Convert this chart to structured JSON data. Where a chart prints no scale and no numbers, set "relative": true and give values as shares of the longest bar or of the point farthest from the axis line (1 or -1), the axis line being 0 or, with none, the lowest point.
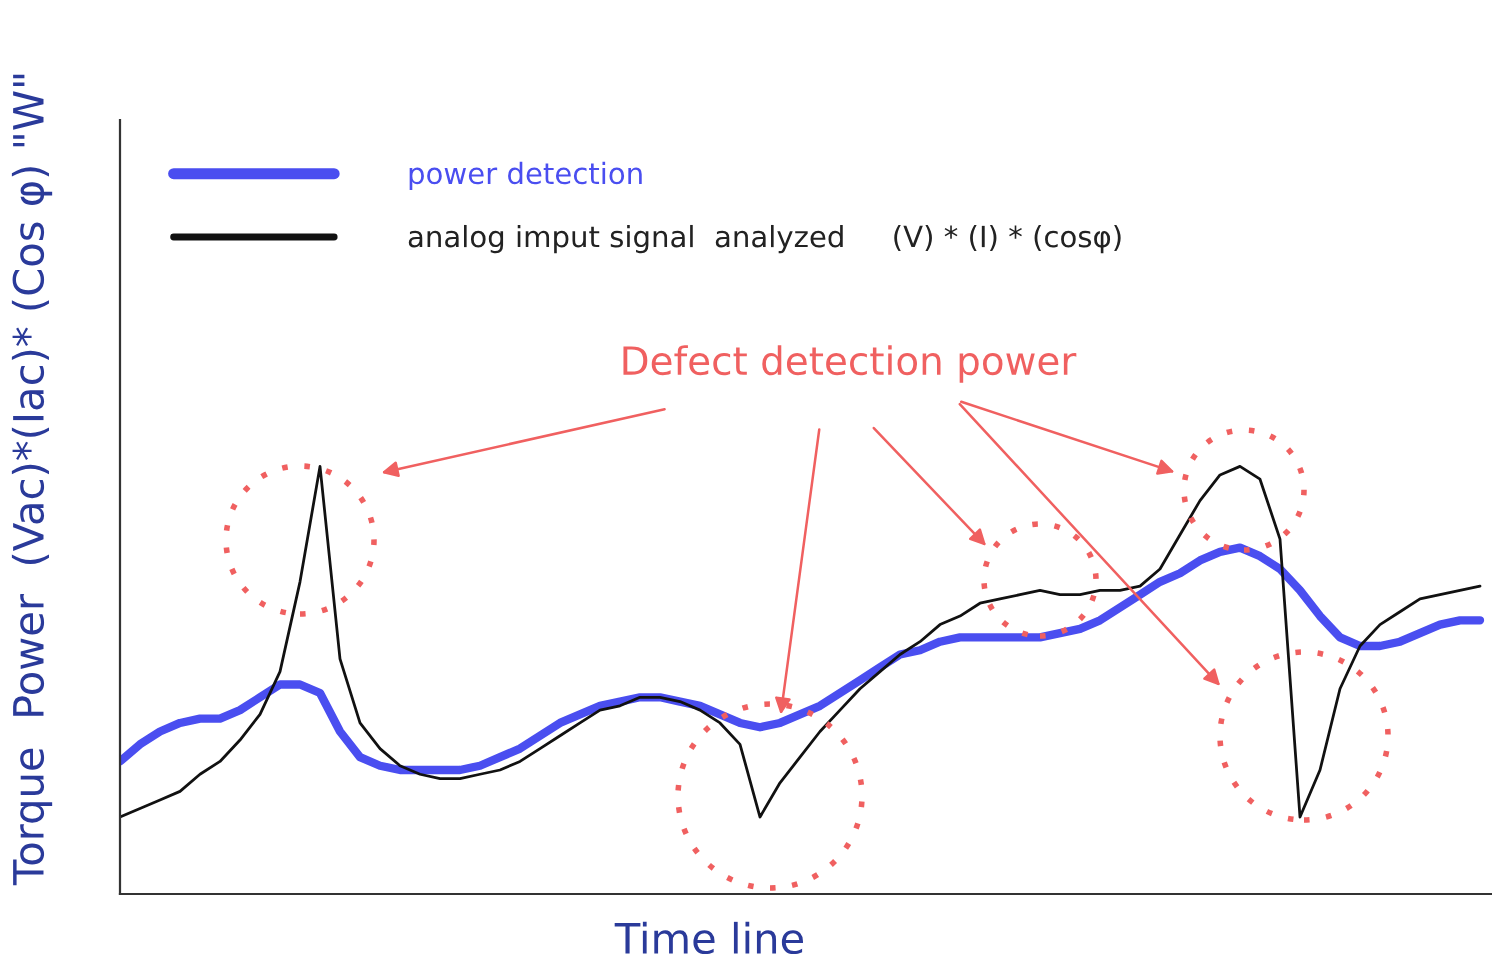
{
  "chart_data": {
    "type": "line",
    "relative": true,
    "xlabel": "Time line",
    "ylabel": "Torque  Power  (Vac)*(Iac)* (Cos φ) \"W\"",
    "annotations": [
      "Defect detection power"
    ],
    "categories": [
      null,
      null,
      null,
      null,
      null,
      null,
      null,
      null,
      null,
      null,
      null,
      null,
      null,
      null,
      null,
      null,
      null,
      null,
      null,
      null,
      null,
      null,
      null,
      null,
      null,
      null,
      null,
      null,
      null,
      null,
      null,
      null,
      null,
      null,
      null,
      null,
      null,
      null,
      null,
      null,
      null,
      null,
      null,
      null,
      null,
      null,
      null,
      null,
      null,
      null,
      null,
      null,
      null,
      null,
      null,
      null,
      null,
      null,
      null,
      null,
      null,
      null,
      null,
      null,
      null,
      null,
      null,
      null,
      null
    ],
    "legend": "top left",
    "grid": false,
    "series": [
      {
        "name": "power detection",
        "color": "#4a4ef0",
        "values": [
          0.31,
          0.35,
          0.38,
          0.4,
          0.41,
          0.41,
          0.43,
          0.46,
          0.49,
          0.49,
          0.47,
          0.38,
          0.32,
          0.3,
          0.29,
          0.29,
          0.29,
          0.29,
          0.3,
          0.32,
          0.34,
          0.37,
          0.4,
          0.42,
          0.44,
          0.45,
          0.46,
          0.46,
          0.45,
          0.44,
          0.42,
          0.4,
          0.39,
          0.4,
          0.42,
          0.44,
          0.47,
          0.5,
          0.53,
          0.56,
          0.57,
          0.59,
          0.6,
          0.6,
          0.6,
          0.6,
          0.6,
          0.61,
          0.62,
          0.64,
          0.67,
          0.7,
          0.73,
          0.75,
          0.78,
          0.8,
          0.81,
          0.79,
          0.76,
          0.71,
          0.65,
          0.6,
          0.58,
          0.58,
          0.59,
          0.61,
          0.63,
          0.64,
          0.64
        ]
      },
      {
        "name": "analog imput signal  analyzed     (V) * (I) * (cosφ)",
        "color": "#111111",
        "values": [
          0.18,
          0.2,
          0.22,
          0.24,
          0.28,
          0.31,
          0.36,
          0.42,
          0.52,
          0.73,
          1.0,
          0.55,
          0.4,
          0.34,
          0.3,
          0.28,
          0.27,
          0.27,
          0.28,
          0.29,
          0.31,
          0.34,
          0.37,
          0.4,
          0.43,
          0.44,
          0.46,
          0.46,
          0.45,
          0.43,
          0.4,
          0.35,
          0.18,
          0.26,
          0.32,
          0.38,
          0.43,
          0.48,
          0.52,
          0.56,
          0.59,
          0.63,
          0.65,
          0.68,
          0.69,
          0.7,
          0.71,
          0.7,
          0.7,
          0.71,
          0.71,
          0.72,
          0.76,
          0.84,
          0.92,
          0.98,
          1.0,
          0.97,
          0.83,
          0.18,
          0.29,
          0.48,
          0.58,
          0.63,
          0.66,
          0.69,
          0.7,
          0.71,
          0.72
        ]
      }
    ]
  }
}
